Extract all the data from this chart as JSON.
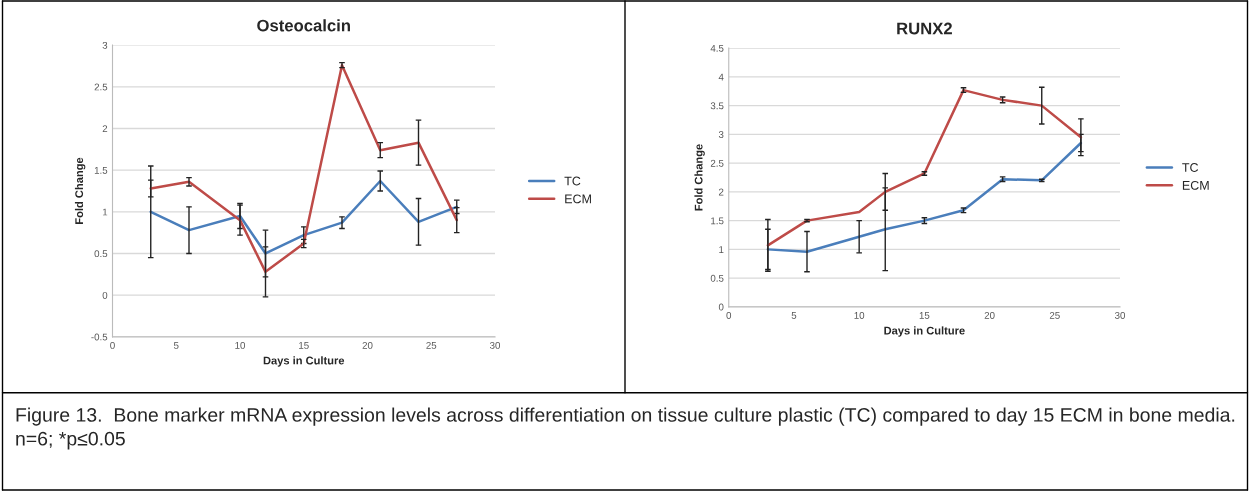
{
  "chart_data": [
    {
      "type": "line",
      "title": "Osteocalcin",
      "xlabel": "Days in Culture",
      "ylabel": "Fold Change",
      "x": [
        3,
        6,
        10,
        12,
        15,
        18,
        21,
        24,
        27
      ],
      "series": [
        {
          "name": "TC",
          "color": "#4a7ebb",
          "values": [
            1.0,
            0.78,
            0.95,
            0.5,
            0.72,
            0.87,
            1.37,
            0.88,
            1.06
          ],
          "errors": [
            0.55,
            0.28,
            0.15,
            0.28,
            0.1,
            0.07,
            0.12,
            0.28,
            0.08
          ]
        },
        {
          "name": "ECM",
          "color": "#be4b48",
          "values": [
            1.28,
            1.36,
            0.9,
            0.28,
            0.62,
            2.76,
            1.74,
            1.83,
            0.9
          ],
          "errors": [
            0.1,
            0.05,
            0.18,
            0.3,
            0.05,
            0.03,
            0.09,
            0.27,
            0.15
          ]
        }
      ],
      "xlim": [
        0,
        30
      ],
      "xticks": [
        0,
        5,
        10,
        15,
        20,
        25,
        30
      ],
      "ylim": [
        -0.5,
        3
      ],
      "yticks": [
        -0.5,
        0,
        0.5,
        1,
        1.5,
        2,
        2.5,
        3
      ],
      "grid": "y",
      "legend": "right",
      "marker": "none",
      "line_style": "solid",
      "annotations": [
        "Figure 13.  Bone marker mRNA expression levels across differentiation on tissue culture plastic (TC) compared to day 15 ECM in bone media.   n=6; *p≤0.05"
      ]
    },
    {
      "type": "line",
      "title": "RUNX2",
      "xlabel": "Days in Culture",
      "ylabel": "Fold Change",
      "x": [
        3,
        6,
        10,
        12,
        15,
        18,
        21,
        24,
        27
      ],
      "series": [
        {
          "name": "TC",
          "color": "#4a7ebb",
          "values": [
            1.0,
            0.96,
            1.22,
            1.35,
            1.5,
            1.68,
            2.22,
            2.2,
            2.85
          ],
          "errors": [
            0.35,
            0.35,
            0.28,
            0.72,
            0.05,
            0.04,
            0.04,
            0.02,
            0.15
          ]
        },
        {
          "name": "ECM",
          "color": "#be4b48",
          "values": [
            1.07,
            1.5,
            1.65,
            2.0,
            2.32,
            3.77,
            3.6,
            3.5,
            2.95
          ],
          "errors": [
            0.45,
            0.02,
            null,
            0.32,
            0.03,
            0.04,
            0.05,
            0.32,
            0.32
          ]
        }
      ],
      "xlim": [
        0,
        30
      ],
      "xticks": [
        0,
        5,
        10,
        15,
        20,
        25,
        30
      ],
      "ylim": [
        0,
        4.5
      ],
      "yticks": [
        0,
        0.5,
        1,
        1.5,
        2,
        2.5,
        3,
        3.5,
        4,
        4.5
      ],
      "grid": "y",
      "legend": "right",
      "marker": "none",
      "line_style": "solid"
    }
  ]
}
